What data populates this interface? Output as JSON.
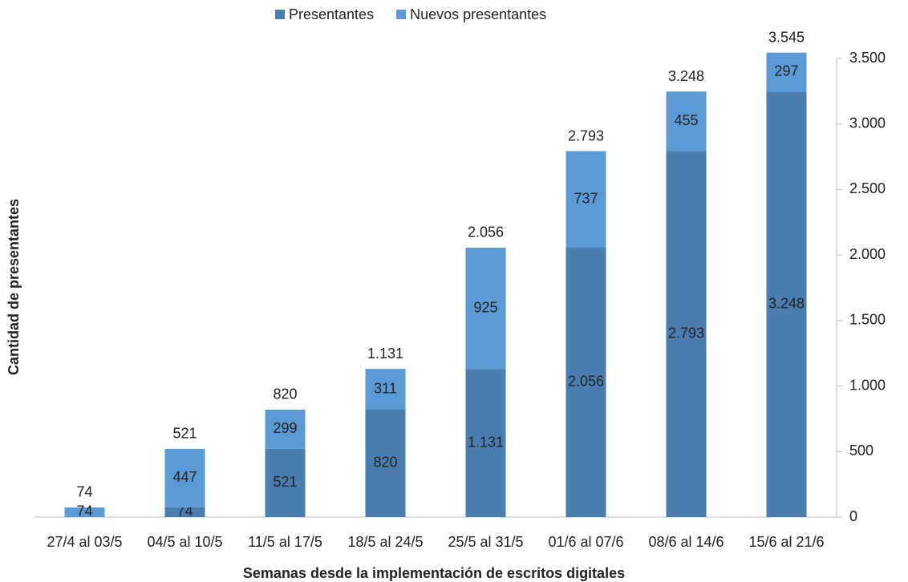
{
  "chart_data": {
    "type": "stacked_bar",
    "x_label": "Semanas desde la implementación de escritos digitales",
    "y_label": "Cantidad de presentantes",
    "categories": [
      "27/4 al 03/5",
      "04/5 al 10/5",
      "11/5 al 17/5",
      "18/5 al 24/5",
      "25/5 al 31/5",
      "01/6 al 07/6",
      "08/6 al 14/6",
      "15/6 al 21/6"
    ],
    "series": [
      {
        "name": "Presentantes",
        "color": "#4a7eb0",
        "values": [
          null,
          74,
          521,
          820,
          1131,
          2056,
          2793,
          3248
        ],
        "value_labels": [
          null,
          "74",
          "521",
          "820",
          "1.131",
          "2.056",
          "2.793",
          "3.248"
        ]
      },
      {
        "name": "Nuevos presentantes",
        "color": "#5b9bd5",
        "values": [
          74,
          447,
          299,
          311,
          925,
          737,
          455,
          297
        ],
        "value_labels": [
          "74",
          "447",
          "299",
          "311",
          "925",
          "737",
          "455",
          "297"
        ]
      }
    ],
    "totals": {
      "values": [
        74,
        521,
        820,
        1131,
        2056,
        2793,
        3248,
        3545
      ],
      "value_labels": [
        "74",
        "521",
        "820",
        "1.131",
        "2.056",
        "2.793",
        "3.248",
        "3.545"
      ]
    },
    "ylim": [
      0,
      3500
    ],
    "yticks": [
      0,
      500,
      {
        "value": 1000,
        "label": "1.000"
      },
      {
        "value": 1500,
        "label": "1.500"
      },
      {
        "value": 2000,
        "label": "2.000"
      },
      {
        "value": 2500,
        "label": "2.500"
      },
      {
        "value": 3000,
        "label": "3.000"
      },
      {
        "value": 3500,
        "label": "3.500"
      }
    ],
    "y_axis_side": "right"
  }
}
